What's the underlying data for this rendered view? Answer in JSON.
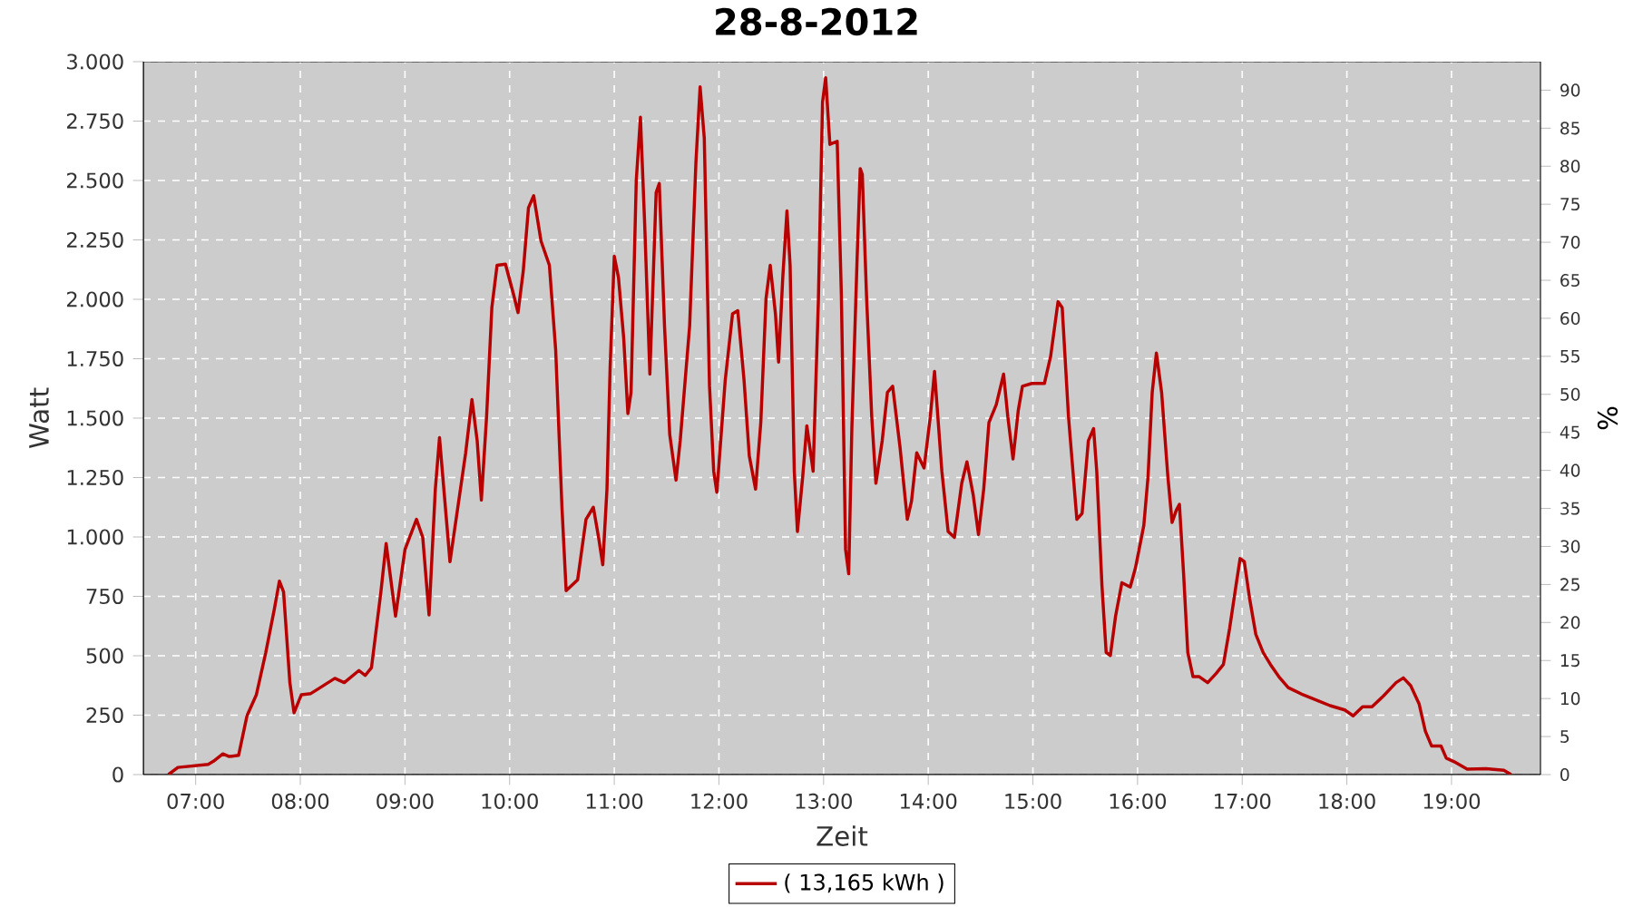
{
  "chart_data": {
    "type": "line",
    "title": "28-8-2012",
    "xlabel": "Zeit",
    "ylabel": "Watt",
    "y2label": "%",
    "x": [
      6.74,
      6.83,
      7.12,
      7.17,
      7.26,
      7.32,
      7.41,
      7.49,
      7.58,
      7.67,
      7.75,
      7.8,
      7.84,
      7.9,
      7.94,
      8.01,
      8.1,
      8.19,
      8.33,
      8.42,
      8.56,
      8.62,
      8.68,
      8.77,
      8.82,
      8.91,
      9.0,
      9.11,
      9.17,
      9.23,
      9.29,
      9.33,
      9.43,
      9.58,
      9.64,
      9.69,
      9.73,
      9.78,
      9.83,
      9.88,
      9.96,
      10.04,
      10.08,
      10.13,
      10.18,
      10.23,
      10.3,
      10.38,
      10.44,
      10.5,
      10.54,
      10.65,
      10.73,
      10.8,
      10.85,
      10.89,
      10.93,
      10.96,
      11.0,
      11.04,
      11.09,
      11.13,
      11.16,
      11.21,
      11.25,
      11.29,
      11.34,
      11.4,
      11.43,
      11.48,
      11.53,
      11.59,
      11.63,
      11.72,
      11.78,
      11.82,
      11.86,
      11.91,
      11.95,
      11.98,
      12.06,
      12.13,
      12.18,
      12.24,
      12.29,
      12.35,
      12.4,
      12.45,
      12.49,
      12.54,
      12.57,
      12.61,
      12.65,
      12.68,
      12.72,
      12.75,
      12.8,
      12.84,
      12.9,
      12.95,
      12.99,
      13.02,
      13.06,
      13.13,
      13.17,
      13.21,
      13.24,
      13.27,
      13.32,
      13.35,
      13.37,
      13.41,
      13.46,
      13.5,
      13.56,
      13.61,
      13.66,
      13.73,
      13.8,
      13.84,
      13.89,
      13.96,
      14.02,
      14.06,
      14.13,
      14.19,
      14.25,
      14.32,
      14.37,
      14.43,
      14.48,
      14.53,
      14.58,
      14.65,
      14.72,
      14.76,
      14.81,
      14.86,
      14.9,
      14.99,
      15.11,
      15.17,
      15.24,
      15.28,
      15.34,
      15.42,
      15.47,
      15.53,
      15.58,
      15.61,
      15.66,
      15.7,
      15.74,
      15.79,
      15.85,
      15.93,
      15.98,
      16.06,
      16.1,
      16.14,
      16.18,
      16.23,
      16.29,
      16.33,
      16.37,
      16.4,
      16.44,
      16.48,
      16.53,
      16.59,
      16.67,
      16.75,
      16.82,
      16.88,
      16.94,
      16.98,
      17.02,
      17.07,
      17.13,
      17.2,
      17.27,
      17.35,
      17.44,
      17.58,
      17.73,
      17.84,
      17.98,
      18.06,
      18.15,
      18.24,
      18.35,
      18.47,
      18.54,
      18.61,
      18.69,
      18.75,
      18.81,
      18.9,
      18.95,
      19.04,
      19.15,
      19.33,
      19.5,
      19.57
    ],
    "series": [
      {
        "name": "( 13,165 kWh )",
        "color": "#b80000",
        "values": [
          0,
          30,
          43,
          56,
          87,
          76,
          81,
          247,
          336,
          514,
          692,
          814,
          769,
          387,
          260,
          336,
          341,
          366,
          405,
          387,
          438,
          417,
          450,
          769,
          972,
          667,
          947,
          1074,
          998,
          672,
          1201,
          1418,
          896,
          1354,
          1578,
          1405,
          1155,
          1507,
          1965,
          2143,
          2148,
          2016,
          1944,
          2118,
          2385,
          2436,
          2245,
          2143,
          1787,
          1125,
          774,
          820,
          1074,
          1125,
          998,
          883,
          1201,
          1710,
          2181,
          2092,
          1837,
          1519,
          1608,
          2500,
          2766,
          2322,
          1685,
          2449,
          2487,
          1888,
          1430,
          1239,
          1405,
          1888,
          2576,
          2894,
          2678,
          1634,
          1277,
          1188,
          1659,
          1939,
          1952,
          1659,
          1341,
          1201,
          1481,
          2003,
          2143,
          1939,
          1736,
          2092,
          2372,
          2143,
          1277,
          1023,
          1252,
          1468,
          1277,
          1990,
          2830,
          2932,
          2652,
          2665,
          2016,
          947,
          845,
          1456,
          2168,
          2550,
          2525,
          2016,
          1507,
          1226,
          1405,
          1608,
          1634,
          1379,
          1074,
          1150,
          1354,
          1290,
          1507,
          1697,
          1277,
          1023,
          998,
          1226,
          1316,
          1176,
          1010,
          1201,
          1481,
          1557,
          1685,
          1507,
          1328,
          1532,
          1634,
          1646,
          1646,
          1761,
          1990,
          1965,
          1507,
          1074,
          1099,
          1405,
          1456,
          1277,
          794,
          514,
          501,
          667,
          807,
          789,
          870,
          1049,
          1252,
          1608,
          1774,
          1608,
          1252,
          1061,
          1112,
          1137,
          845,
          514,
          412,
          412,
          387,
          425,
          463,
          616,
          794,
          909,
          896,
          743,
          590,
          514,
          463,
          412,
          366,
          336,
          310,
          290,
          272,
          247,
          285,
          285,
          331,
          387,
          407,
          374,
          298,
          183,
          120,
          120,
          69,
          51,
          23,
          25,
          18,
          0
        ]
      }
    ],
    "xlim": [
      6.5,
      19.85
    ],
    "xticks": [
      {
        "value": 7,
        "label": "07:00"
      },
      {
        "value": 8,
        "label": "08:00"
      },
      {
        "value": 9,
        "label": "09:00"
      },
      {
        "value": 10,
        "label": "10:00"
      },
      {
        "value": 11,
        "label": "11:00"
      },
      {
        "value": 12,
        "label": "12:00"
      },
      {
        "value": 13,
        "label": "13:00"
      },
      {
        "value": 14,
        "label": "14:00"
      },
      {
        "value": 15,
        "label": "15:00"
      },
      {
        "value": 16,
        "label": "16:00"
      },
      {
        "value": 17,
        "label": "17:00"
      },
      {
        "value": 18,
        "label": "18:00"
      },
      {
        "value": 19,
        "label": "19:00"
      }
    ],
    "ylim": [
      0,
      3000
    ],
    "yticks": [
      0,
      250,
      500,
      750,
      {
        "value": 1000,
        "label": "1.000"
      },
      {
        "value": 1250,
        "label": "1.250"
      },
      {
        "value": 1500,
        "label": "1.500"
      },
      {
        "value": 1750,
        "label": "1.750"
      },
      {
        "value": 2000,
        "label": "2.000"
      },
      {
        "value": 2250,
        "label": "2.250"
      },
      {
        "value": 2500,
        "label": "2.500"
      },
      {
        "value": 2750,
        "label": "2.750"
      },
      {
        "value": 3000,
        "label": "3.000"
      }
    ],
    "y2lim": [
      0,
      93.75
    ],
    "y2ticks": [
      0,
      5,
      10,
      15,
      20,
      25,
      30,
      35,
      40,
      45,
      50,
      55,
      60,
      65,
      70,
      75,
      80,
      85,
      90
    ],
    "grid": true,
    "legend": "bottom"
  }
}
